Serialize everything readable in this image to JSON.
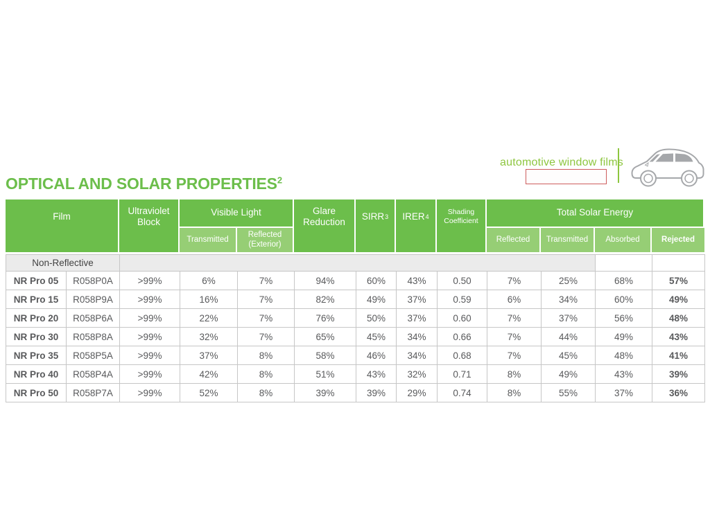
{
  "branding": {
    "tagline": "automotive window films",
    "redaction_box": "empty-red-outlined-box",
    "car_icon": "car-side-icon"
  },
  "title": {
    "text": "OPTICAL AND SOLAR PROPERTIES",
    "superscript": "2"
  },
  "table": {
    "header": {
      "film": "Film",
      "uv_block": "Ultraviolet Block",
      "visible_light": "Visible Light",
      "vl_transmitted": "Transmitted",
      "vl_reflected": "Reflected (Exterior)",
      "glare": "Glare Reduction",
      "sirr": "SIRR",
      "sirr_sup": "3",
      "irer": "IRER",
      "irer_sup": "4",
      "shading": "Shading Coefficient",
      "tse": "Total Solar Energy",
      "tse_reflected": "Reflected",
      "tse_transmitted": "Transmitted",
      "tse_absorbed": "Absorbed",
      "tse_rejected": "Rejected"
    },
    "section_label": "Non-Reflective",
    "rows": [
      {
        "film": "NR Pro 05",
        "code": "R058P0A",
        "uv": ">99%",
        "vlt": "6%",
        "vlr": "7%",
        "glare": "94%",
        "sirr": "60%",
        "irer": "43%",
        "sc": "0.50",
        "tse_r": "7%",
        "tse_t": "25%",
        "tse_a": "68%",
        "tse_rej": "57%"
      },
      {
        "film": "NR Pro 15",
        "code": "R058P9A",
        "uv": ">99%",
        "vlt": "16%",
        "vlr": "7%",
        "glare": "82%",
        "sirr": "49%",
        "irer": "37%",
        "sc": "0.59",
        "tse_r": "6%",
        "tse_t": "34%",
        "tse_a": "60%",
        "tse_rej": "49%"
      },
      {
        "film": "NR Pro 20",
        "code": "R058P6A",
        "uv": ">99%",
        "vlt": "22%",
        "vlr": "7%",
        "glare": "76%",
        "sirr": "50%",
        "irer": "37%",
        "sc": "0.60",
        "tse_r": "7%",
        "tse_t": "37%",
        "tse_a": "56%",
        "tse_rej": "48%"
      },
      {
        "film": "NR Pro 30",
        "code": "R058P8A",
        "uv": ">99%",
        "vlt": "32%",
        "vlr": "7%",
        "glare": "65%",
        "sirr": "45%",
        "irer": "34%",
        "sc": "0.66",
        "tse_r": "7%",
        "tse_t": "44%",
        "tse_a": "49%",
        "tse_rej": "43%"
      },
      {
        "film": "NR Pro 35",
        "code": "R058P5A",
        "uv": ">99%",
        "vlt": "37%",
        "vlr": "8%",
        "glare": "58%",
        "sirr": "46%",
        "irer": "34%",
        "sc": "0.68",
        "tse_r": "7%",
        "tse_t": "45%",
        "tse_a": "48%",
        "tse_rej": "41%"
      },
      {
        "film": "NR Pro 40",
        "code": "R058P4A",
        "uv": ">99%",
        "vlt": "42%",
        "vlr": "8%",
        "glare": "51%",
        "sirr": "43%",
        "irer": "32%",
        "sc": "0.71",
        "tse_r": "8%",
        "tse_t": "49%",
        "tse_a": "43%",
        "tse_rej": "39%"
      },
      {
        "film": "NR Pro 50",
        "code": "R058P7A",
        "uv": ">99%",
        "vlt": "52%",
        "vlr": "8%",
        "glare": "39%",
        "sirr": "39%",
        "irer": "29%",
        "sc": "0.74",
        "tse_r": "8%",
        "tse_t": "55%",
        "tse_a": "37%",
        "tse_rej": "36%"
      }
    ]
  },
  "colors": {
    "brand_green": "#6cbe4b",
    "light_green": "#96ce75",
    "tagline_green": "#8dc63f",
    "section_gray": "#ebebeb",
    "border_gray": "#c6c6c6",
    "text_gray": "#58595b",
    "text_dark": "#1d1d1f",
    "redaction_red": "#cd5c5c",
    "car_gray": "#a5a7aa"
  }
}
